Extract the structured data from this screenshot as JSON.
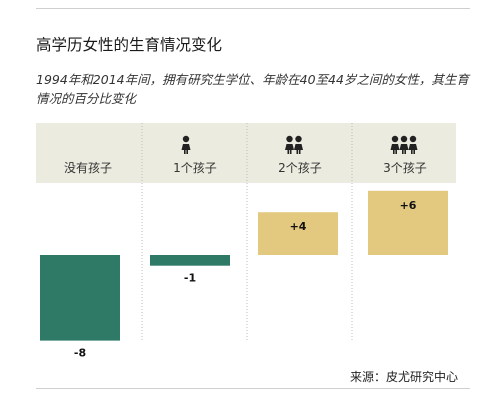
{
  "title": "高学历女性的生育情况变化",
  "subtitle": "1994年和2014年间，拥有研究生学位、年龄在40至44岁之间的女性，其生育情况的百分比变化",
  "source": "来源：皮尤研究中心",
  "colors": {
    "negative": "#2f7a66",
    "positive": "#e3c880",
    "band": "#ebebdf"
  },
  "icons": [
    "none",
    "child-icon",
    "two-children-icon",
    "three-children-icon"
  ],
  "chart_data": {
    "type": "bar",
    "categories": [
      "没有孩子",
      "1个孩子",
      "2个孩子",
      "3个孩子"
    ],
    "values": [
      -8,
      -1,
      4,
      6
    ],
    "value_labels": [
      "-8",
      "-1",
      "+4",
      "+6"
    ],
    "title": "高学历女性的生育情况变化",
    "ylim": [
      -8,
      6
    ],
    "grid": false,
    "legend": "none"
  }
}
